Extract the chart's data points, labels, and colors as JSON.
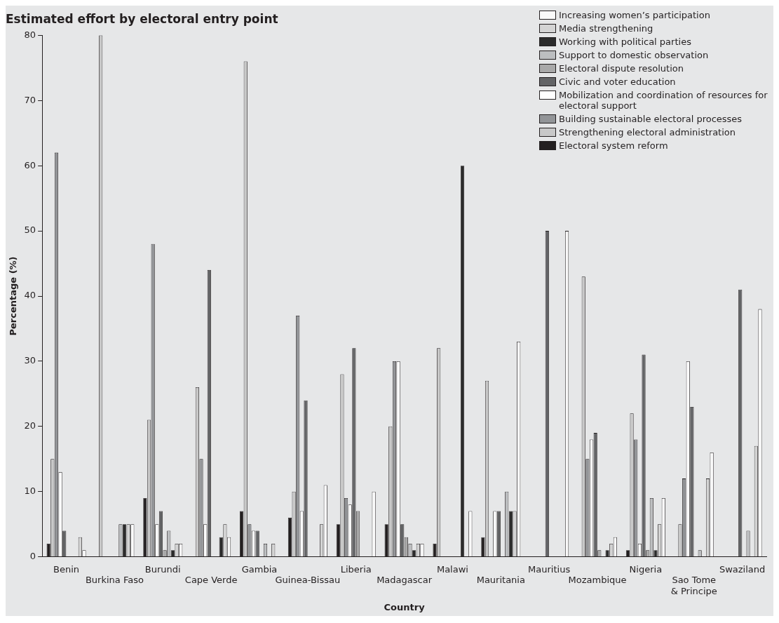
{
  "chart_data": {
    "type": "bar",
    "title": "Estimated effort by electoral entry point",
    "xlabel": "Country",
    "ylabel": "Percentage (%)",
    "categories": [
      "Benin",
      "Burkina Faso",
      "Burundi",
      "Cape Verde",
      "Gambia",
      "Guinea-Bissau",
      "Liberia",
      "Madagascar",
      "Malawi",
      "Mauritania",
      "Mauritius",
      "Mozambique",
      "Nigeria",
      "Sao Tome\n& Principe",
      "Swaziland"
    ],
    "series": [
      {
        "name": "Electoral system reform",
        "color": "#231f20",
        "values": [
          2,
          0,
          9,
          0,
          7,
          6,
          5,
          5,
          2,
          3,
          0,
          0,
          1,
          0,
          0
        ]
      },
      {
        "name": "Strengthening electoral administration",
        "color": "#c8c8c8",
        "values": [
          15,
          80,
          21,
          26,
          76,
          10,
          28,
          20,
          32,
          27,
          0,
          43,
          22,
          5,
          0
        ]
      },
      {
        "name": "Building sustainable electoral processes",
        "color": "#939598",
        "values": [
          62,
          0,
          48,
          15,
          5,
          37,
          9,
          30,
          0,
          0,
          0,
          15,
          18,
          12,
          0
        ]
      },
      {
        "name": "Mobilization and coordination of resources for electoral support",
        "color": "#ffffff",
        "values": [
          13,
          0,
          5,
          5,
          4,
          7,
          8,
          30,
          0,
          7,
          0,
          18,
          2,
          30,
          0
        ]
      },
      {
        "name": "Civic and voter education",
        "color": "#636466",
        "values": [
          4,
          0,
          7,
          44,
          4,
          24,
          32,
          5,
          0,
          7,
          50,
          19,
          31,
          23,
          41
        ]
      },
      {
        "name": "Electoral dispute resolution",
        "color": "#a9a9a9",
        "values": [
          0,
          0,
          1,
          0,
          0,
          0,
          7,
          3,
          0,
          0,
          0,
          1,
          1,
          0,
          0
        ]
      },
      {
        "name": "Support to domestic observation",
        "color": "#bcbec0",
        "values": [
          0,
          5,
          4,
          0,
          2,
          0,
          0,
          2,
          0,
          10,
          0,
          0,
          9,
          1,
          4
        ]
      },
      {
        "name": "Working with political parties",
        "color": "#2b2b2b",
        "values": [
          0,
          5,
          1,
          3,
          0,
          0,
          0,
          1,
          60,
          7,
          0,
          1,
          1,
          0,
          0
        ]
      },
      {
        "name": "Media strengthening",
        "color": "#d4d4d4",
        "values": [
          3,
          5,
          2,
          5,
          2,
          5,
          0,
          2,
          0,
          7,
          0,
          2,
          5,
          12,
          17
        ]
      },
      {
        "name": "Increasing women’s participation",
        "color": "#fafafa",
        "values": [
          1,
          5,
          2,
          3,
          0,
          11,
          10,
          2,
          7,
          33,
          50,
          3,
          9,
          16,
          38
        ]
      }
    ],
    "ylim": [
      0,
      80
    ],
    "yticks": [
      0,
      10,
      20,
      30,
      40,
      50,
      60,
      70,
      80
    ],
    "grid": false,
    "legend": "top right"
  }
}
